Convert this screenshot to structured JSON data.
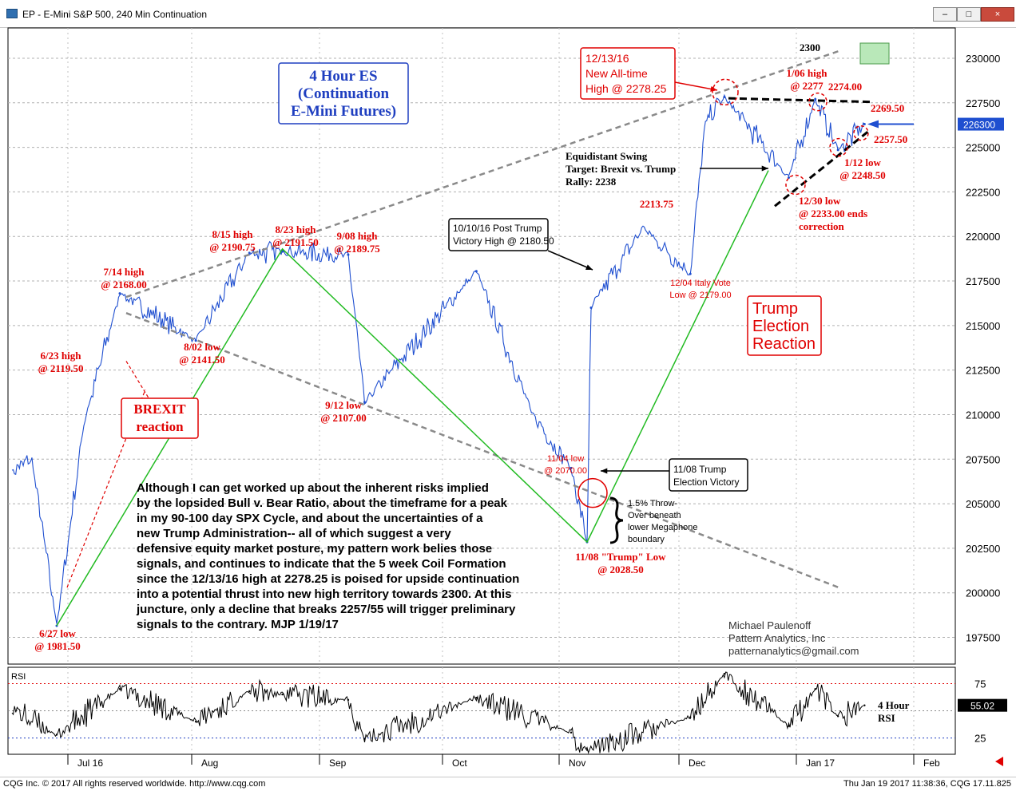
{
  "window": {
    "title": "EP - E-Mini S&P 500, 240 Min Continuation",
    "buttons": [
      "–",
      "□",
      "×"
    ]
  },
  "footer": {
    "left": "CQG Inc. © 2017 All rights reserved worldwide. http://www.cqg.com",
    "right": "Thu Jan 19 2017 11:38:36, CQG 17.11.825"
  },
  "chart_data": [
    {
      "type": "line",
      "panel": "price",
      "grid": true,
      "ylim": [
        196000,
        231700
      ],
      "yticks": [
        "230000",
        "227500",
        "225000",
        "222500",
        "220000",
        "217500",
        "215000",
        "212500",
        "210000",
        "207500",
        "205000",
        "202500",
        "200000",
        "197500"
      ],
      "xticks": [
        "Jul 16",
        "Aug",
        "Sep",
        "Oct",
        "Nov",
        "Dec",
        "Jan 17",
        "Feb"
      ],
      "last_value": "226300",
      "series_color": "#1f4fd0",
      "x": [
        "6/27",
        "7/14",
        "8/02",
        "8/15",
        "8/23",
        "9/08",
        "9/12",
        "10/10",
        "11/04",
        "11/08",
        "11/09",
        "12/04",
        "12/13",
        "12/30",
        "1/06",
        "1/12",
        "1/19"
      ],
      "y": [
        198150,
        216800,
        214150,
        219075,
        219150,
        218975,
        210700,
        218050,
        207000,
        202850,
        216000,
        217900,
        227825,
        223300,
        227700,
        224850,
        226300
      ],
      "title_box": "4 Hour ES\n(Continuation\nE-Mini Futures)",
      "annotations": [
        {
          "id": "a_6_27",
          "text": "6/27 low\n@ 1981.50",
          "color": "#e00000"
        },
        {
          "id": "a_6_23",
          "text": "6/23 high\n@ 2119.50",
          "color": "#e00000"
        },
        {
          "id": "a_7_14",
          "text": "7/14 high\n@ 2168.00",
          "color": "#e00000"
        },
        {
          "id": "a_8_15",
          "text": "8/15 high\n@ 2190.75",
          "color": "#e00000"
        },
        {
          "id": "a_8_23",
          "text": "8/23 high\n@ 2191.50",
          "color": "#e00000"
        },
        {
          "id": "a_9_08",
          "text": "9/08 high\n@ 2189.75",
          "color": "#e00000"
        },
        {
          "id": "a_8_02",
          "text": "8/02 low\n@ 2141.50",
          "color": "#e00000"
        },
        {
          "id": "a_9_12",
          "text": "9/12 low\n@ 2107.00",
          "color": "#e00000"
        },
        {
          "id": "a_11_04",
          "text": "11/04 low\n@ 2070.00",
          "color": "#e00000"
        },
        {
          "id": "a_11_08",
          "text": "11/08 \"Trump\" Low\n@ 2028.50",
          "color": "#e00000"
        },
        {
          "id": "a_12_04",
          "text": "12/04 Italy Vote\nLow @ 2179.00",
          "color": "#e00000"
        },
        {
          "id": "a_2213",
          "text": "2213.75",
          "color": "#e00000"
        },
        {
          "id": "a_1_06",
          "text": "1/06 high\n@ 2277",
          "color": "#e00000"
        },
        {
          "id": "a_2274",
          "text": "2274.00",
          "color": "#e00000"
        },
        {
          "id": "a_2269",
          "text": "2269.50",
          "color": "#e00000"
        },
        {
          "id": "a_2257",
          "text": "2257.50",
          "color": "#e00000"
        },
        {
          "id": "a_1_12",
          "text": "1/12 low\n@ 2248.50",
          "color": "#e00000"
        },
        {
          "id": "a_12_30",
          "text": "12/30 low\n@ 2233.00 ends\ncorrection",
          "color": "#e00000"
        },
        {
          "id": "a_2300",
          "text": "2300",
          "color": "#000000"
        },
        {
          "id": "a_eq",
          "text": "Equidistant Swing\nTarget: Brexit vs. Trump\nRally: 2238",
          "color": "#000000"
        },
        {
          "id": "a_throw",
          "text": "1.5% Throw-\nOver beneath\nlower Megaphone\nboundary",
          "color": "#000000"
        },
        {
          "id": "a_author",
          "text": "Michael Paulenoff\nPattern Analytics, Inc\npatternanalytics@gmail.com",
          "color": "#333333"
        }
      ],
      "boxes": [
        {
          "id": "b_ath",
          "text": "12/13/16\nNew All-time\nHigh @ 2278.25",
          "color": "#e00000"
        },
        {
          "id": "b_brexit",
          "text": "BREXIT\nreaction",
          "color": "#e00000"
        },
        {
          "id": "b_trump",
          "text": "Trump\nElection\nReaction",
          "color": "#e00000"
        },
        {
          "id": "b_victory",
          "text": "10/10/16 Post Trump\nVictory High @ 2180.50",
          "color": "#000000"
        },
        {
          "id": "b_election",
          "text": "11/08 Trump\nElection Victory",
          "color": "#000000"
        }
      ],
      "commentary": [
        "Although I can get worked up about the inherent risks implied",
        "by the lopsided Bull v. Bear Ratio, about the timeframe for a peak",
        "in my 90-100 day SPX Cycle, and about the uncertainties of a",
        "new Trump Administration-- all of which suggest a very",
        "defensive equity market posture, my pattern work belies those",
        "signals, and continues to indicate that the 5 week Coil Formation",
        "since the 12/13/16 high at 2278.25 is poised for upside continuation",
        "into a potential thrust into new high territory towards 2300. At this",
        "juncture, only a decline that breaks 2257/55 will trigger preliminary",
        "signals to the contrary. MJP 1/19/17"
      ]
    },
    {
      "type": "line",
      "panel": "rsi",
      "label": "RSI",
      "ylim": [
        10,
        90
      ],
      "yticks": [
        "75",
        "25"
      ],
      "last_value": "55.02",
      "side_label": "4 Hour\nRSI",
      "x": [
        "6/27",
        "7/14",
        "8/02",
        "8/15",
        "8/23",
        "9/08",
        "9/12",
        "10/10",
        "11/04",
        "11/08",
        "12/04",
        "12/13",
        "12/30",
        "1/06",
        "1/12",
        "1/19"
      ],
      "y": [
        28,
        70,
        40,
        68,
        65,
        60,
        24,
        62,
        30,
        14,
        44,
        84,
        36,
        70,
        45,
        55
      ]
    }
  ]
}
